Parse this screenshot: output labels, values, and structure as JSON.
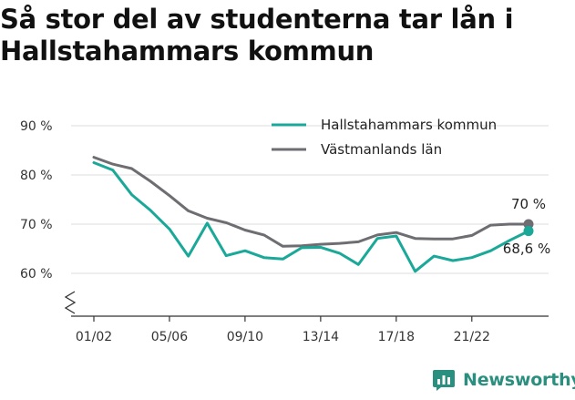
{
  "title_line1": "Så stor del av studenterna tar lån i",
  "title_line2": "Hallstahammars kommun",
  "brand": {
    "name": "Newsworthy",
    "icon": "bar-chart-speech-icon",
    "color": "#2a8f7f"
  },
  "chart_data": {
    "type": "line",
    "x": [
      "01/02",
      "02/03",
      "03/04",
      "04/05",
      "05/06",
      "06/07",
      "07/08",
      "08/09",
      "09/10",
      "10/11",
      "11/12",
      "12/13",
      "13/14",
      "14/15",
      "15/16",
      "16/17",
      "17/18",
      "18/19",
      "19/20",
      "20/21",
      "21/22",
      "22/23",
      "23/24",
      "24/25"
    ],
    "x_tick_labels": [
      "01/02",
      "05/06",
      "09/10",
      "13/14",
      "17/18",
      "21/22"
    ],
    "y_ticks": [
      60,
      70,
      80,
      90
    ],
    "y_tick_labels": [
      "60 %",
      "70 %",
      "80 %",
      "90 %"
    ],
    "ylim": [
      53,
      92
    ],
    "y_axis_break": true,
    "grid": "horizontal",
    "legend_position": "top-right",
    "series": [
      {
        "name": "Hallstahammars kommun",
        "color": "#1aa898",
        "values": [
          82.5,
          81.0,
          76.0,
          72.8,
          69.0,
          63.5,
          70.2,
          63.6,
          64.6,
          63.2,
          62.9,
          65.2,
          65.3,
          64.1,
          61.8,
          67.1,
          67.6,
          60.4,
          63.5,
          62.6,
          63.2,
          64.6,
          66.7,
          68.6
        ],
        "end_label": "68,6 %"
      },
      {
        "name": "Västmanlands län",
        "color": "#6e6e72",
        "values": [
          83.6,
          82.2,
          81.3,
          78.7,
          75.8,
          72.7,
          71.2,
          70.3,
          68.8,
          67.8,
          65.5,
          65.6,
          65.9,
          66.1,
          66.4,
          67.8,
          68.3,
          67.1,
          67.0,
          67.0,
          67.7,
          69.8,
          70.0,
          70.0
        ],
        "end_label": "70 %"
      }
    ]
  }
}
